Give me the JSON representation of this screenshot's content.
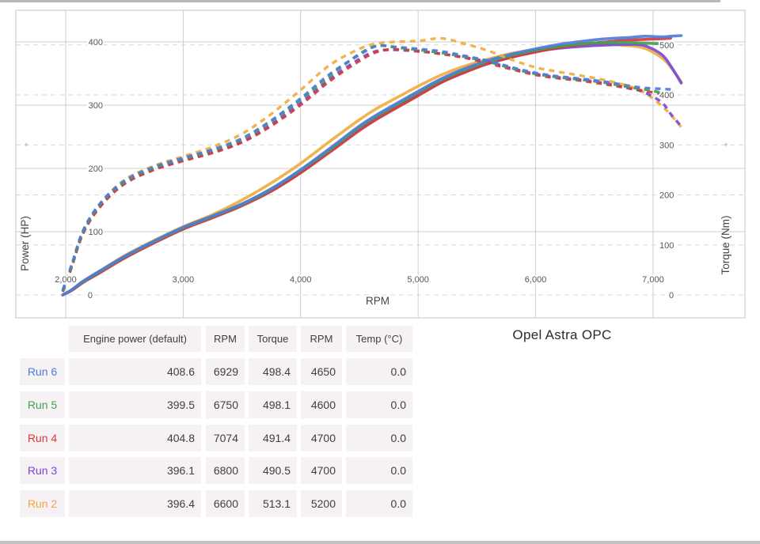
{
  "chart_data": {
    "type": "line",
    "title": "Opel Astra OPC",
    "xlabel": "RPM",
    "ylabel_left": "Power (HP)",
    "ylabel_right": "Torque (Nm)",
    "grid": true,
    "legend_position": "none",
    "x_range": [
      1975,
      7240
    ],
    "left_axis_range": [
      0,
      400
    ],
    "right_axis_range": [
      0,
      500
    ],
    "x_ticks": [
      2000,
      3000,
      4000,
      5000,
      6000,
      7000
    ],
    "x_tick_labels": [
      "2,000",
      "3,000",
      "4,000",
      "5,000",
      "6,000",
      "7,000"
    ],
    "left_ticks": [
      0,
      100,
      200,
      300,
      400
    ],
    "right_ticks": [
      0,
      100,
      200,
      300,
      400,
      500
    ],
    "zero_label": "0",
    "rpm": [
      1975,
      2050,
      2150,
      2300,
      2500,
      2750,
      3000,
      3250,
      3500,
      3750,
      4000,
      4250,
      4500,
      4650,
      4800,
      5000,
      5200,
      5400,
      5600,
      5800,
      6000,
      6200,
      6400,
      6600,
      6800,
      6929,
      7074,
      7150,
      7240
    ],
    "series": [
      {
        "name": "Run 2",
        "color": "#F0AC3F",
        "power_hp": [
          0,
          8,
          22,
          39,
          62,
          86,
          108,
          127,
          150,
          177,
          208,
          243,
          277,
          295,
          310,
          330,
          348,
          362,
          373,
          382,
          388,
          392,
          395,
          396,
          394,
          390,
          375,
          360,
          337
        ],
        "torque_nm": [
          9,
          59,
          128,
          184,
          230,
          258,
          277,
          296,
          322,
          362,
          410,
          460,
          492,
          503,
          506,
          508,
          513,
          502,
          488,
          470,
          455,
          446,
          438,
          429,
          417,
          404,
          378,
          360,
          336
        ]
      },
      {
        "name": "Run 3",
        "color": "#7A4BD8",
        "power_hp": [
          0,
          7,
          20,
          37,
          59,
          83,
          105,
          123,
          142,
          165,
          194,
          228,
          262,
          280,
          296,
          317,
          337,
          353,
          366,
          376,
          385,
          390,
          393,
          395,
          396,
          394,
          380,
          362,
          335
        ],
        "torque_nm": [
          7,
          56,
          125,
          180,
          224,
          252,
          270,
          286,
          307,
          341,
          384,
          432,
          472,
          488,
          490,
          487,
          482,
          475,
          466,
          453,
          442,
          435,
          430,
          423,
          413,
          405,
          385,
          362,
          337
        ]
      },
      {
        "name": "Run 4",
        "color": "#D23840",
        "power_hp": [
          0,
          7,
          20,
          36,
          58,
          82,
          104,
          122,
          141,
          164,
          193,
          226,
          260,
          278,
          294,
          315,
          336,
          352,
          366,
          376,
          384,
          391,
          396,
          400,
          403,
          404,
          405,
          406,
          null
        ],
        "torque_nm": [
          6,
          55,
          124,
          178,
          222,
          250,
          268,
          284,
          305,
          338,
          380,
          428,
          468,
          486,
          491,
          488,
          482,
          474,
          463,
          451,
          440,
          433,
          428,
          421,
          413,
          408,
          402,
          400,
          null
        ]
      },
      {
        "name": "Run 5",
        "color": "#44A14E",
        "power_hp": [
          0,
          8,
          21,
          38,
          60,
          84,
          106,
          124,
          143,
          167,
          197,
          230,
          265,
          283,
          299,
          320,
          340,
          356,
          369,
          379,
          387,
          393,
          397,
          399,
          399,
          398,
          397,
          395,
          null
        ],
        "torque_nm": [
          8,
          58,
          127,
          183,
          226,
          254,
          272,
          289,
          311,
          347,
          390,
          438,
          482,
          498,
          495,
          490,
          484,
          476,
          466,
          453,
          442,
          435,
          430,
          424,
          415,
          411,
          404,
          399,
          null
        ]
      },
      {
        "name": "Run 6",
        "color": "#4F7CD9",
        "power_hp": [
          0,
          8,
          22,
          39,
          61,
          85,
          107,
          125,
          144,
          168,
          198,
          232,
          267,
          285,
          301,
          322,
          342,
          358,
          371,
          381,
          389,
          396,
          401,
          405,
          407,
          409,
          408,
          409,
          410
        ],
        "torque_nm": [
          10,
          60,
          130,
          185,
          228,
          256,
          274,
          291,
          313,
          349,
          393,
          442,
          480,
          498,
          496,
          492,
          487,
          478,
          468,
          455,
          444,
          437,
          432,
          426,
          418,
          414,
          412,
          411,
          null
        ]
      }
    ]
  },
  "table": {
    "headers": [
      "Engine power (default)",
      "RPM",
      "Torque",
      "RPM",
      "Temp (°C)"
    ],
    "rows": [
      {
        "label": "Run 6",
        "color": "#4F7CD9",
        "values": [
          "408.6",
          "6929",
          "498.4",
          "4650",
          "0.0"
        ]
      },
      {
        "label": "Run 5",
        "color": "#44A14E",
        "values": [
          "399.5",
          "6750",
          "498.1",
          "4600",
          "0.0"
        ]
      },
      {
        "label": "Run 4",
        "color": "#D93A34",
        "values": [
          "404.8",
          "7074",
          "491.4",
          "4700",
          "0.0"
        ]
      },
      {
        "label": "Run 3",
        "color": "#7847D8",
        "values": [
          "396.1",
          "6800",
          "490.5",
          "4700",
          "0.0"
        ]
      },
      {
        "label": "Run 2",
        "color": "#F0A73E",
        "values": [
          "396.4",
          "6600",
          "513.1",
          "5200",
          "0.0"
        ]
      }
    ]
  }
}
